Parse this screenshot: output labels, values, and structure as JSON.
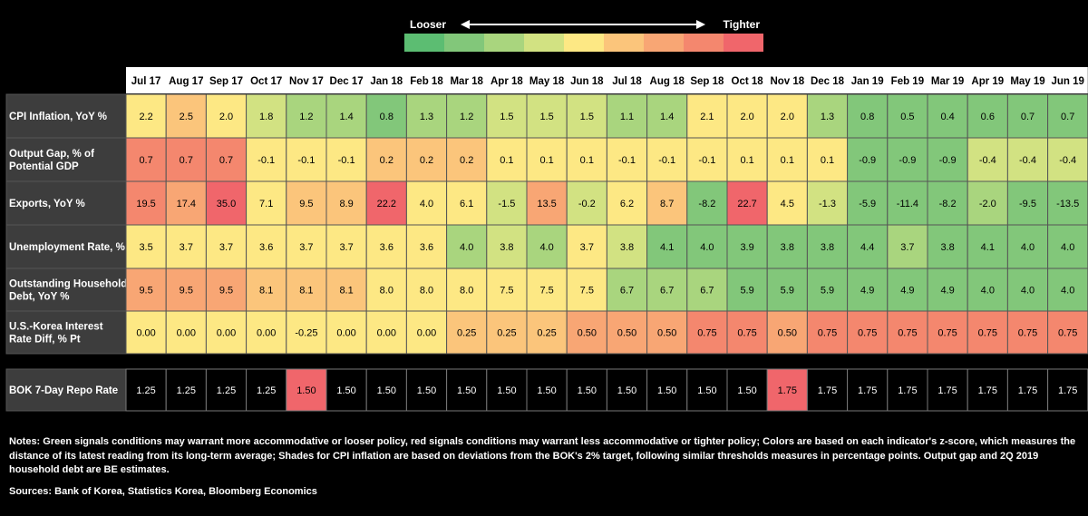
{
  "legend": {
    "looser_label": "Looser",
    "tighter_label": "Tighter",
    "colors": [
      "#5cbd72",
      "#82c77a",
      "#a9d57e",
      "#d2e282",
      "#fde884",
      "#fbc57b",
      "#f8a674",
      "#f4876e",
      "#f0666b"
    ]
  },
  "chart_data": {
    "type": "heatmap",
    "columns": [
      "Jul 17",
      "Aug 17",
      "Sep 17",
      "Oct 17",
      "Nov 17",
      "Dec 17",
      "Jan 18",
      "Feb 18",
      "Mar 18",
      "Apr 18",
      "May 18",
      "Jun 18",
      "Jul 18",
      "Aug 18",
      "Sep 18",
      "Oct 18",
      "Nov 18",
      "Dec 18",
      "Jan 19",
      "Feb 19",
      "Mar 19",
      "Apr 19",
      "May 19",
      "Jun 19"
    ],
    "rows": [
      {
        "label": [
          "CPI Inflation, YoY %"
        ],
        "values": [
          "2.2",
          "2.5",
          "2.0",
          "1.8",
          "1.2",
          "1.4",
          "0.8",
          "1.3",
          "1.2",
          "1.5",
          "1.5",
          "1.5",
          "1.1",
          "1.4",
          "2.1",
          "2.0",
          "2.0",
          "1.3",
          "0.8",
          "0.5",
          "0.4",
          "0.6",
          "0.7",
          "0.7"
        ],
        "shades": [
          4,
          5,
          4,
          3,
          2,
          2,
          1,
          2,
          2,
          3,
          3,
          3,
          2,
          2,
          4,
          4,
          4,
          2,
          1,
          1,
          1,
          1,
          1,
          1
        ]
      },
      {
        "label": [
          "Output Gap, % of",
          "Potential GDP"
        ],
        "values": [
          "0.7",
          "0.7",
          "0.7",
          "-0.1",
          "-0.1",
          "-0.1",
          "0.2",
          "0.2",
          "0.2",
          "0.1",
          "0.1",
          "0.1",
          "-0.1",
          "-0.1",
          "-0.1",
          "0.1",
          "0.1",
          "0.1",
          "-0.9",
          "-0.9",
          "-0.9",
          "-0.4",
          "-0.4",
          "-0.4"
        ],
        "shades": [
          7,
          7,
          7,
          4,
          4,
          4,
          5,
          5,
          5,
          4,
          4,
          4,
          4,
          4,
          4,
          4,
          4,
          4,
          1,
          1,
          1,
          3,
          3,
          3
        ]
      },
      {
        "label": [
          "Exports, YoY %"
        ],
        "values": [
          "19.5",
          "17.4",
          "35.0",
          "7.1",
          "9.5",
          "8.9",
          "22.2",
          "4.0",
          "6.1",
          "-1.5",
          "13.5",
          "-0.2",
          "6.2",
          "8.7",
          "-8.2",
          "22.7",
          "4.5",
          "-1.3",
          "-5.9",
          "-11.4",
          "-8.2",
          "-2.0",
          "-9.5",
          "-13.5"
        ],
        "shades": [
          7,
          6,
          8,
          4,
          5,
          5,
          8,
          4,
          4,
          3,
          6,
          3,
          4,
          5,
          1,
          8,
          4,
          3,
          1,
          1,
          1,
          2,
          1,
          1
        ]
      },
      {
        "label": [
          "Unemployment Rate, %"
        ],
        "values": [
          "3.5",
          "3.7",
          "3.7",
          "3.6",
          "3.7",
          "3.7",
          "3.6",
          "3.6",
          "4.0",
          "3.8",
          "4.0",
          "3.7",
          "3.8",
          "4.1",
          "4.0",
          "3.9",
          "3.8",
          "3.8",
          "4.4",
          "3.7",
          "3.8",
          "4.1",
          "4.0",
          "4.0"
        ],
        "shades": [
          4,
          4,
          4,
          4,
          4,
          4,
          4,
          4,
          2,
          3,
          2,
          4,
          3,
          1,
          1,
          1,
          1,
          1,
          1,
          2,
          1,
          1,
          1,
          1
        ]
      },
      {
        "label": [
          "Outstanding Household",
          "Debt, YoY %"
        ],
        "values": [
          "9.5",
          "9.5",
          "9.5",
          "8.1",
          "8.1",
          "8.1",
          "8.0",
          "8.0",
          "8.0",
          "7.5",
          "7.5",
          "7.5",
          "6.7",
          "6.7",
          "6.7",
          "5.9",
          "5.9",
          "5.9",
          "4.9",
          "4.9",
          "4.9",
          "4.0",
          "4.0",
          "4.0"
        ],
        "shades": [
          6,
          6,
          6,
          5,
          5,
          5,
          4,
          4,
          4,
          4,
          4,
          4,
          2,
          2,
          2,
          1,
          1,
          1,
          1,
          1,
          1,
          1,
          1,
          1
        ]
      },
      {
        "label": [
          "U.S.-Korea Interest",
          "Rate Diff, % Pt"
        ],
        "values": [
          "0.00",
          "0.00",
          "0.00",
          "0.00",
          "-0.25",
          "0.00",
          "0.00",
          "0.00",
          "0.25",
          "0.25",
          "0.25",
          "0.50",
          "0.50",
          "0.50",
          "0.75",
          "0.75",
          "0.50",
          "0.75",
          "0.75",
          "0.75",
          "0.75",
          "0.75",
          "0.75",
          "0.75"
        ],
        "shades": [
          4,
          4,
          4,
          4,
          4,
          4,
          4,
          4,
          5,
          5,
          5,
          6,
          6,
          6,
          7,
          7,
          6,
          7,
          7,
          7,
          7,
          7,
          7,
          7
        ]
      }
    ],
    "repo": {
      "label": "BOK 7-Day Repo Rate",
      "values": [
        "1.25",
        "1.25",
        "1.25",
        "1.25",
        "1.50",
        "1.50",
        "1.50",
        "1.50",
        "1.50",
        "1.50",
        "1.50",
        "1.50",
        "1.50",
        "1.50",
        "1.50",
        "1.50",
        "1.75",
        "1.75",
        "1.75",
        "1.75",
        "1.75",
        "1.75",
        "1.75",
        "1.75"
      ],
      "highlight_columns": [
        "Nov 17",
        "Nov 18"
      ],
      "highlight_color": "#f0666b"
    }
  },
  "notes": "Notes: Green signals conditions may warrant more accommodative or looser policy, red signals conditions may warrant less accommodative or tighter policy; Colors are based on each indicator's z-score, which measures the distance of its latest reading from its long-term average; Shades for CPI inflation are based on deviations from the BOK's 2% target, following similar thresholds measures in percentage points. Output gap and 2Q 2019 household debt are BE estimates.",
  "sources": "Sources: Bank of Korea, Statistics Korea, Bloomberg Economics"
}
